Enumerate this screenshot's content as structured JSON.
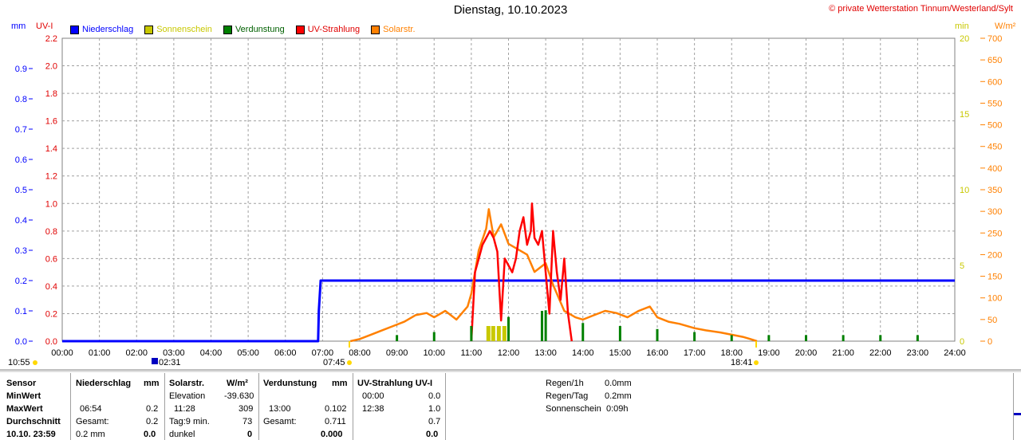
{
  "header": {
    "title": "Dienstag, 10.10.2023",
    "copyright": "© private Wetterstation Tinnum/Westerland/Sylt"
  },
  "legend": [
    {
      "label": "Niederschlag",
      "color": "#0000ff"
    },
    {
      "label": "Sonnenschein",
      "color": "#c8c800"
    },
    {
      "label": "Verdunstung",
      "color": "#008000"
    },
    {
      "label": "UV-Strahlung",
      "color": "#ff0000"
    },
    {
      "label": "Solarstr.",
      "color": "#ff8000"
    }
  ],
  "axis_units": {
    "mm": "mm",
    "uvi": "UV-I",
    "min": "min",
    "wm2": "W/m²"
  },
  "chart_data": {
    "type": "line",
    "x_ticks": [
      "00:00",
      "01:00",
      "02:00",
      "03:00",
      "04:00",
      "05:00",
      "06:00",
      "07:00",
      "08:00",
      "09:00",
      "10:00",
      "11:00",
      "12:00",
      "13:00",
      "14:00",
      "15:00",
      "16:00",
      "17:00",
      "18:00",
      "19:00",
      "20:00",
      "21:00",
      "22:00",
      "23:00",
      "24:00"
    ],
    "axes": {
      "mm": {
        "range": [
          0,
          1.0
        ],
        "ticks": [
          "0.0",
          "0.1",
          "0.2",
          "0.3",
          "0.4",
          "0.5",
          "0.6",
          "0.7",
          "0.8",
          "0.9"
        ],
        "color": "#0000ff"
      },
      "uvi": {
        "range": [
          0,
          2.2
        ],
        "ticks": [
          "0.0",
          "0.2",
          "0.4",
          "0.6",
          "0.8",
          "1.0",
          "1.2",
          "1.4",
          "1.6",
          "1.8",
          "2.0",
          "2.2"
        ],
        "color": "#ff0000"
      },
      "min": {
        "range": [
          0,
          20
        ],
        "ticks": [
          "0",
          "5",
          "10",
          "15",
          "20"
        ],
        "color": "#c8c800"
      },
      "wm2": {
        "range": [
          0,
          700
        ],
        "ticks": [
          "0",
          "50",
          "100",
          "150",
          "200",
          "250",
          "300",
          "350",
          "400",
          "450",
          "500",
          "550",
          "600",
          "650",
          "700"
        ],
        "color": "#ff8000"
      }
    },
    "grid": true,
    "series": [
      {
        "name": "Niederschlag",
        "axis": "mm",
        "color": "#0000ff",
        "x": [
          0,
          6.88,
          6.9,
          6.95,
          24
        ],
        "y": [
          0,
          0,
          0.1,
          0.2,
          0.2
        ]
      },
      {
        "name": "Solarstr.",
        "axis": "wm2",
        "color": "#ff8000",
        "x": [
          7.75,
          8.0,
          8.3,
          8.6,
          8.9,
          9.2,
          9.5,
          9.8,
          10.0,
          10.3,
          10.6,
          10.9,
          11.0,
          11.2,
          11.4,
          11.47,
          11.6,
          11.8,
          12.0,
          12.2,
          12.5,
          12.7,
          13.0,
          13.2,
          13.5,
          13.8,
          14.0,
          14.3,
          14.6,
          14.9,
          15.2,
          15.5,
          15.8,
          16.0,
          16.3,
          16.6,
          17.0,
          17.3,
          17.7,
          18.0,
          18.3,
          18.5,
          18.68
        ],
        "y": [
          0,
          5,
          15,
          25,
          35,
          45,
          60,
          65,
          55,
          70,
          50,
          80,
          110,
          210,
          260,
          305,
          240,
          270,
          225,
          215,
          200,
          160,
          180,
          130,
          70,
          55,
          50,
          60,
          70,
          65,
          55,
          70,
          80,
          55,
          45,
          40,
          30,
          25,
          20,
          15,
          10,
          5,
          0
        ]
      },
      {
        "name": "UV-Strahlung",
        "axis": "uvi",
        "color": "#ff0000",
        "x": [
          11.0,
          11.1,
          11.2,
          11.3,
          11.4,
          11.5,
          11.6,
          11.7,
          11.8,
          11.9,
          12.0,
          12.1,
          12.2,
          12.3,
          12.4,
          12.5,
          12.6,
          12.63,
          12.7,
          12.8,
          12.9,
          13.0,
          13.1,
          13.2,
          13.3,
          13.4,
          13.5,
          13.6,
          13.7
        ],
        "y": [
          0.0,
          0.5,
          0.6,
          0.7,
          0.75,
          0.8,
          0.75,
          0.65,
          0.15,
          0.6,
          0.55,
          0.5,
          0.6,
          0.8,
          0.9,
          0.7,
          0.8,
          1.0,
          0.75,
          0.7,
          0.8,
          0.5,
          0.2,
          0.8,
          0.5,
          0.3,
          0.6,
          0.2,
          0.0
        ]
      },
      {
        "name": "Verdunstung",
        "axis": "mm",
        "color": "#008000",
        "x": [
          9.0,
          10.0,
          11.0,
          12.0,
          12.9,
          13.0,
          14.0,
          15.0,
          16.0,
          17.0,
          18.0,
          19.0,
          20.0,
          21.0,
          22.0,
          23.0
        ],
        "y": [
          0.02,
          0.03,
          0.05,
          0.08,
          0.1,
          0.102,
          0.06,
          0.05,
          0.04,
          0.03,
          0.02,
          0.02,
          0.02,
          0.02,
          0.02,
          0.02
        ]
      },
      {
        "name": "Sonnenschein",
        "axis": "min",
        "color": "#c8c800",
        "x": [
          11.47,
          11.6,
          11.75,
          11.9
        ],
        "y": [
          1.0,
          1.0,
          1.0,
          1.0
        ]
      }
    ]
  },
  "markers": {
    "sunrise": "07:45",
    "sunset": "18:41",
    "left": "10:55",
    "mid": "02:31"
  },
  "stats": {
    "sensor": {
      "header": "Sensor",
      "min": "MinWert",
      "max": "MaxWert",
      "avg": "Durchschnitt",
      "last": "10.10. 23:59"
    },
    "niederschlag": {
      "header": "Niederschlag",
      "unit": "mm",
      "max_time": "06:54",
      "max_val": "0.2",
      "sum_label": "Gesamt:",
      "sum_val": "0.2",
      "last_val": "0.2 mm",
      "last_total": "0.0"
    },
    "solar": {
      "header": "Solarstr.",
      "unit": "W/m²",
      "elev_label": "Elevation",
      "elev_val": "-39.630",
      "max_time": "11:28",
      "max_val": "309",
      "day_label": "Tag:9 min.",
      "day_val": "73",
      "dark_label": "dunkel",
      "dark_val": "0"
    },
    "verdunstung": {
      "header": "Verdunstung",
      "unit": "mm",
      "max_time": "13:00",
      "max_val": "0.102",
      "sum_label": "Gesamt:",
      "sum_val": "0.711",
      "last_val": "0.000"
    },
    "uv": {
      "header": "UV-Strahlung UV-I",
      "min_time": "00:00",
      "min_val": "0.0",
      "max_time": "12:38",
      "max_val": "1.0",
      "avg_val": "0.7",
      "last_val": "0.0"
    },
    "summary": {
      "regen_h_label": "Regen/1h",
      "regen_h_val": "0.0mm",
      "regen_d_label": "Regen/Tag",
      "regen_d_val": "0.2mm",
      "sun_label": "Sonnenschein",
      "sun_val": "0:09h"
    }
  }
}
